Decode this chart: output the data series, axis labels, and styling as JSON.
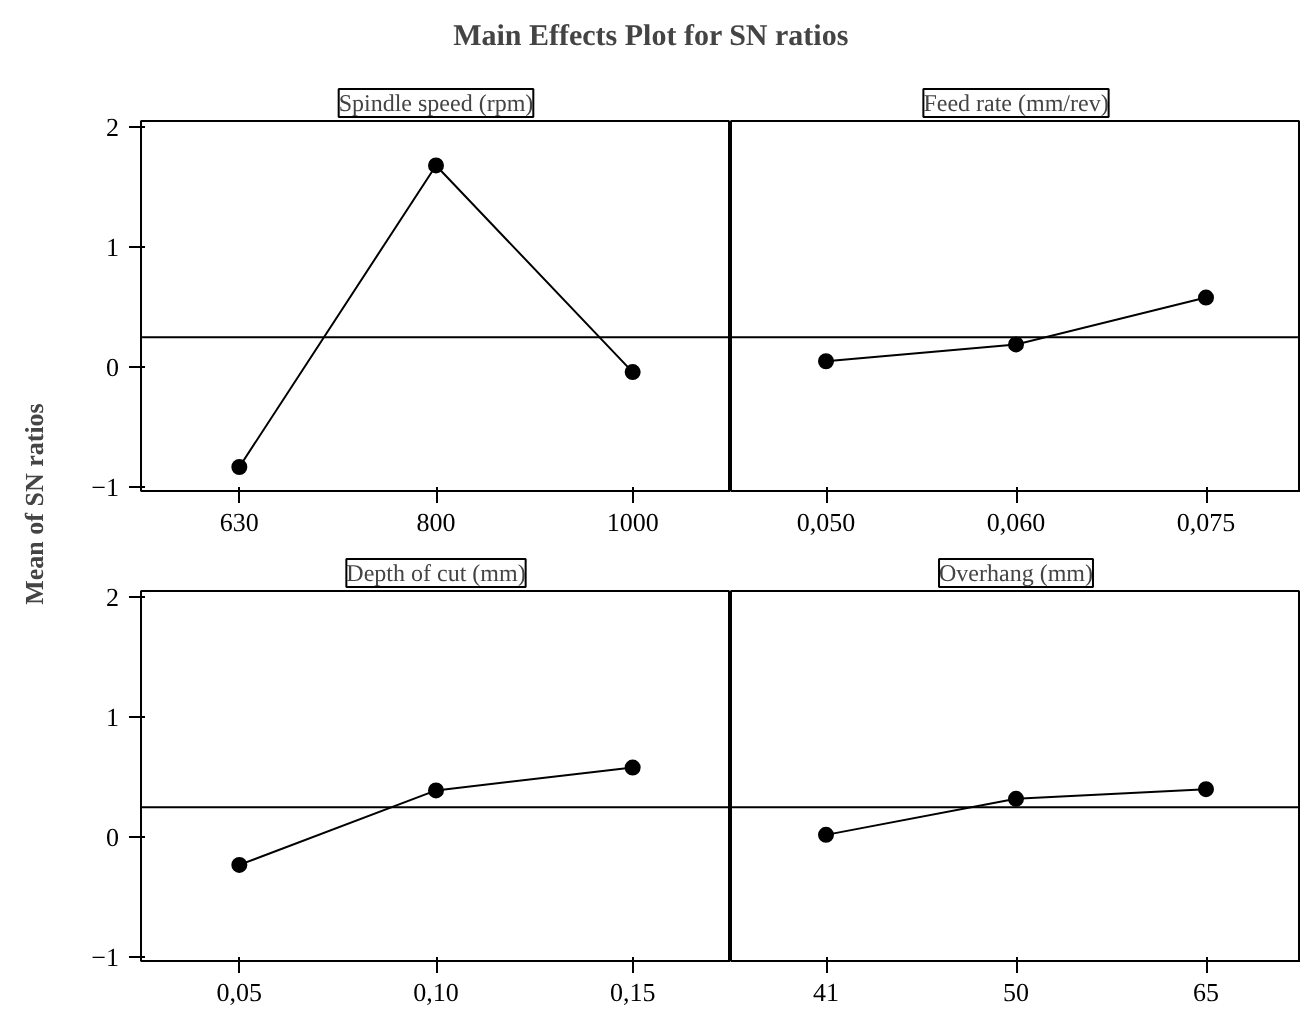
{
  "chart_data": [
    {
      "type": "line",
      "title": "Main Effects Plot for SN ratios",
      "ylabel": "Mean of SN ratios",
      "subtitle": "Spindle speed (rpm)",
      "categories": [
        "630",
        "800",
        "1000"
      ],
      "values": [
        -0.83,
        1.68,
        -0.04
      ],
      "color": "#000000",
      "marker": "circle",
      "ylim": [
        -1.03,
        2.05
      ],
      "yticks": [
        -1,
        0,
        1,
        2
      ],
      "ref_lines": [
        {
          "axis": "y",
          "value": 0.25,
          "color": "#000000"
        }
      ]
    },
    {
      "type": "line",
      "subtitle": "Feed rate (mm/rev)",
      "categories": [
        "0,050",
        "0,060",
        "0,075"
      ],
      "values": [
        0.05,
        0.19,
        0.58
      ],
      "color": "#000000",
      "marker": "circle",
      "ylim": [
        -1.03,
        2.05
      ],
      "yticks": [
        -1,
        0,
        1,
        2
      ],
      "tick_labels": "x",
      "ref_lines": [
        {
          "axis": "y",
          "value": 0.25,
          "color": "#000000"
        }
      ]
    },
    {
      "type": "line",
      "subtitle": "Depth of cut (mm)",
      "categories": [
        "0,05",
        "0,10",
        "0,15"
      ],
      "values": [
        -0.23,
        0.39,
        0.58
      ],
      "color": "#000000",
      "marker": "circle",
      "ylim": [
        -1.03,
        2.05
      ],
      "yticks": [
        -1,
        0,
        1,
        2
      ],
      "ref_lines": [
        {
          "axis": "y",
          "value": 0.25,
          "color": "#000000"
        }
      ]
    },
    {
      "type": "line",
      "subtitle": "Overhang (mm)",
      "categories": [
        "41",
        "50",
        "65"
      ],
      "values": [
        0.02,
        0.32,
        0.4
      ],
      "color": "#000000",
      "marker": "circle",
      "ylim": [
        -1.03,
        2.05
      ],
      "yticks": [
        -1,
        0,
        1,
        2
      ],
      "tick_labels": "x",
      "ref_lines": [
        {
          "axis": "y",
          "value": 0.25,
          "color": "#000000"
        }
      ]
    }
  ]
}
